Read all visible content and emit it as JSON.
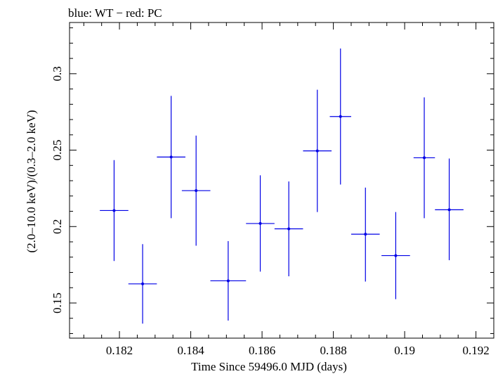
{
  "chart_data": {
    "type": "scatter",
    "title": "blue: WT − red: PC",
    "xlabel": "Time Since 59496.0 MJD (days)",
    "ylabel": "(2.0–10.0 keV)/(0.3–2.0 keV)",
    "xlim": [
      0.1806,
      0.1925
    ],
    "ylim": [
      0.127,
      0.3335
    ],
    "x_major_ticks": [
      0.182,
      0.184,
      0.186,
      0.188,
      0.19,
      0.192
    ],
    "x_tick_labels": [
      "0.182",
      "0.184",
      "0.186",
      "0.188",
      "0.19",
      "0.192"
    ],
    "x_minor_step": 0.0005,
    "y_major_ticks": [
      0.15,
      0.2,
      0.25,
      0.3
    ],
    "y_tick_labels": [
      "0.15",
      "0.2",
      "0.25",
      "0.3"
    ],
    "y_minor_step": 0.01,
    "grid": false,
    "series": [
      {
        "color": "#0000e6",
        "points": [
          {
            "x": 0.18185,
            "xerr": 0.0004,
            "y": 0.2105,
            "ylo": 0.1775,
            "yhi": 0.2435
          },
          {
            "x": 0.18265,
            "xerr": 0.0004,
            "y": 0.1625,
            "ylo": 0.1365,
            "yhi": 0.1885
          },
          {
            "x": 0.18345,
            "xerr": 0.0004,
            "y": 0.2455,
            "ylo": 0.2055,
            "yhi": 0.2855
          },
          {
            "x": 0.18415,
            "xerr": 0.0004,
            "y": 0.2235,
            "ylo": 0.1875,
            "yhi": 0.2595
          },
          {
            "x": 0.18505,
            "xerr": 0.0005,
            "y": 0.1645,
            "ylo": 0.1385,
            "yhi": 0.1905
          },
          {
            "x": 0.18595,
            "xerr": 0.0004,
            "y": 0.202,
            "ylo": 0.1705,
            "yhi": 0.2335
          },
          {
            "x": 0.18675,
            "xerr": 0.0004,
            "y": 0.1985,
            "ylo": 0.1675,
            "yhi": 0.2295
          },
          {
            "x": 0.18755,
            "xerr": 0.0004,
            "y": 0.2495,
            "ylo": 0.2095,
            "yhi": 0.2895
          },
          {
            "x": 0.1882,
            "xerr": 0.0003,
            "y": 0.272,
            "ylo": 0.2275,
            "yhi": 0.3165
          },
          {
            "x": 0.1889,
            "xerr": 0.0004,
            "y": 0.195,
            "ylo": 0.164,
            "yhi": 0.2255
          },
          {
            "x": 0.18975,
            "xerr": 0.0004,
            "y": 0.181,
            "ylo": 0.1525,
            "yhi": 0.2095
          },
          {
            "x": 0.19055,
            "xerr": 0.0003,
            "y": 0.245,
            "ylo": 0.2055,
            "yhi": 0.2845
          },
          {
            "x": 0.19125,
            "xerr": 0.0004,
            "y": 0.211,
            "ylo": 0.178,
            "yhi": 0.2445
          }
        ]
      }
    ]
  }
}
